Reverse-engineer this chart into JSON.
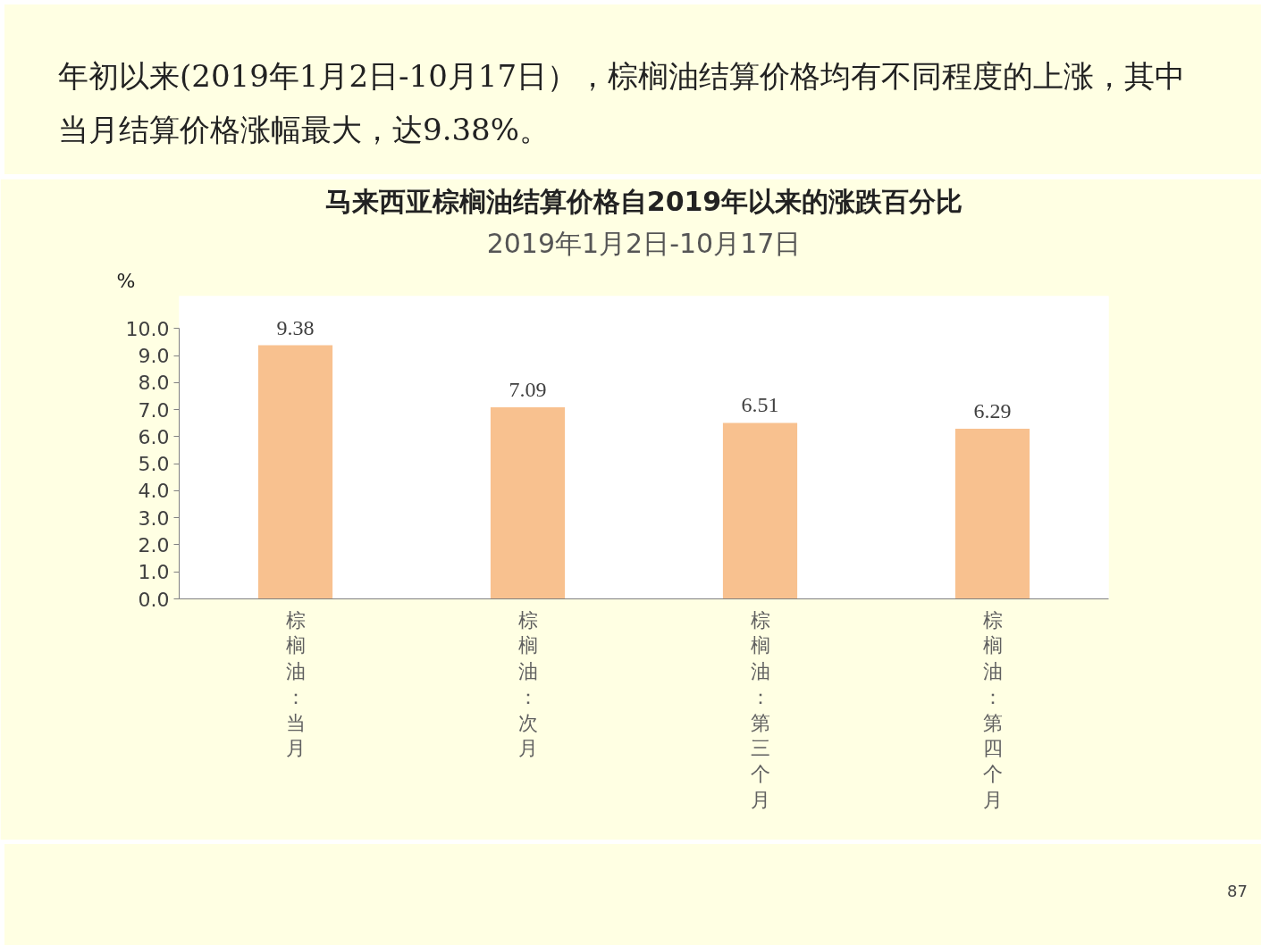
{
  "chart_data": {
    "type": "bar",
    "title": "马来西亚棕榈油结算价格自2019年以来的涨跌百分比",
    "subtitle": "2019年1月2日-10月17日",
    "ylabel": "%",
    "annotations": [
      "年初以来(2019年1月2日-10月17日），棕榈油结算价格均有不同程度的上涨，其中当月结算价格涨幅最大，达9.38%。",
      "87"
    ],
    "categories": [
      "棕榈油：当月",
      "棕榈油：次月",
      "棕榈油：第三个月",
      "棕榈油：第四个月"
    ],
    "values": [
      9.38,
      7.09,
      6.51,
      6.29
    ],
    "color": "#f8c18f",
    "data_labels": true,
    "grid": false,
    "ylim": [
      0,
      10
    ],
    "yticks": [
      {
        "value": 0,
        "label": "0.0"
      },
      {
        "value": 1,
        "label": "1.0"
      },
      {
        "value": 2,
        "label": "2.0"
      },
      {
        "value": 3,
        "label": "3.0"
      },
      {
        "value": 4,
        "label": "4.0"
      },
      {
        "value": 5,
        "label": "5.0"
      },
      {
        "value": 6,
        "label": "6.0"
      },
      {
        "value": 7,
        "label": "7.0"
      },
      {
        "value": 8,
        "label": "8.0"
      },
      {
        "value": 9,
        "label": "9.0"
      },
      {
        "value": 10,
        "label": "10.0"
      }
    ]
  }
}
